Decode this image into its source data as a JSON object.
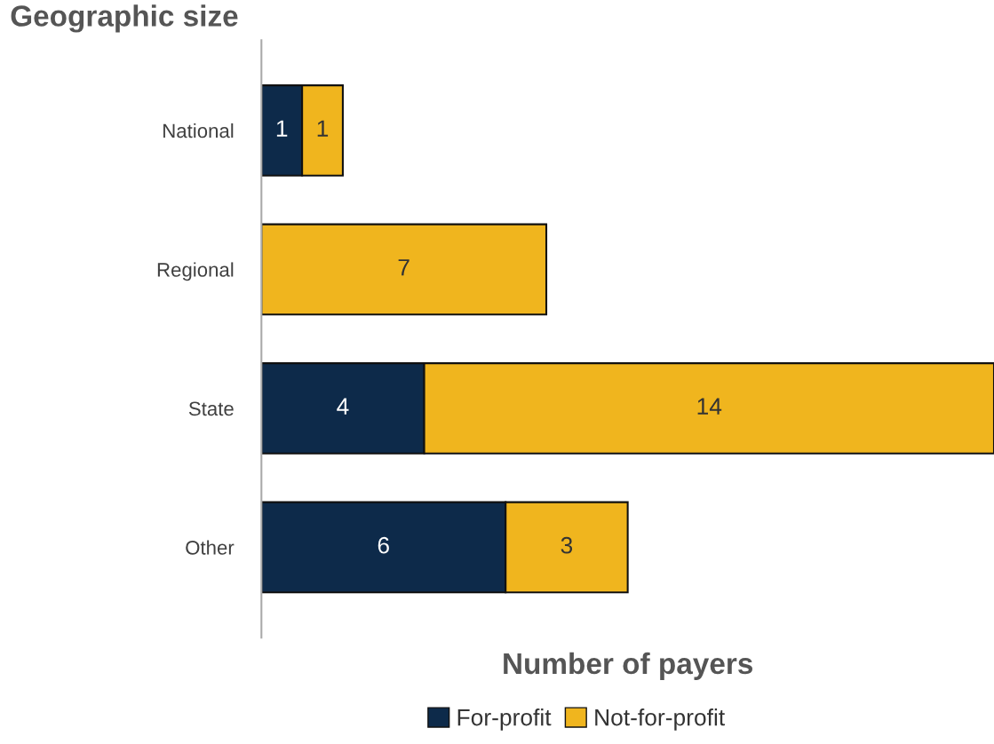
{
  "chart_data": {
    "type": "bar",
    "orientation": "horizontal",
    "stacked": true,
    "ylabel": "Geographic size",
    "xlabel": "Number of payers",
    "categories": [
      "National",
      "Regional",
      "State",
      "Other"
    ],
    "series": [
      {
        "name": "For-profit",
        "color": "#0d2a4a",
        "values": [
          1,
          null,
          4,
          6
        ]
      },
      {
        "name": "Not-for-profit",
        "color": "#f0b51e",
        "values": [
          1,
          7,
          14,
          3
        ]
      }
    ],
    "data_labels": true,
    "legend": "bottom",
    "grid": false,
    "tick_labels": "y"
  }
}
